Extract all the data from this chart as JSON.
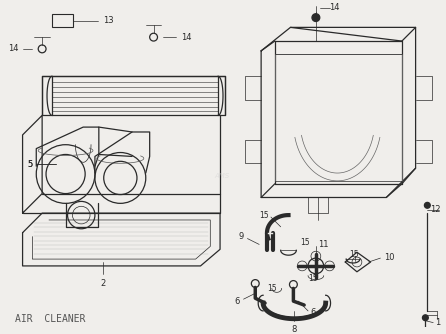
{
  "title": "AIR  CLEANER",
  "bg": "#f0eeeb",
  "lc": "#2a2a2a",
  "figsize": [
    4.46,
    3.34
  ],
  "dpi": 100,
  "label_fs": 6.0,
  "title_fs": 7.0
}
